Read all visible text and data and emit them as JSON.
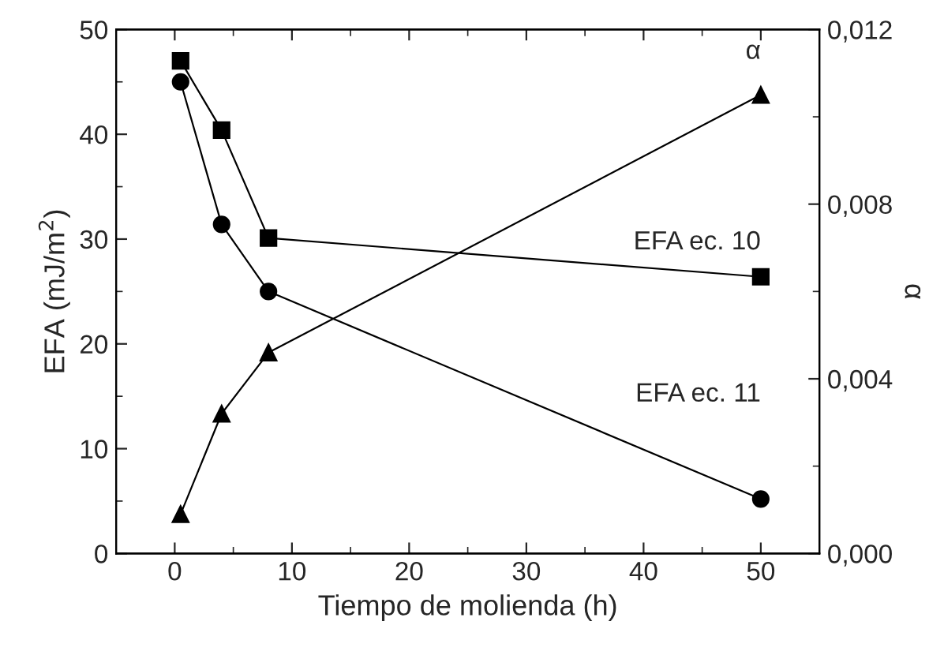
{
  "chart_data": {
    "type": "line",
    "xlabel": "Tiempo de molienda (h)",
    "ylabel": "EFA (mJ/m$^{2}$)",
    "y2label": "α",
    "x": [
      0.5,
      4,
      8,
      50
    ],
    "series": [
      {
        "name": "EFA ec. 10",
        "color": "#000000",
        "marker": "square",
        "values": [
          47,
          40.4,
          30.1,
          26.4
        ]
      },
      {
        "name": "EFA ec. 11",
        "color": "#000000",
        "marker": "circle",
        "values": [
          45,
          31.4,
          25,
          5.2
        ]
      },
      {
        "name": "α",
        "color": "#000000",
        "marker": "triangle",
        "axis": "y2",
        "values": [
          0.0009,
          0.0032,
          0.0046,
          0.0105
        ]
      }
    ],
    "xlim": [
      -5,
      55
    ],
    "xticks": [
      0,
      10,
      20,
      30,
      40,
      50
    ],
    "ylim": [
      0,
      50
    ],
    "yticks": [
      0,
      10,
      20,
      30,
      40,
      50
    ],
    "y2lim": [
      0,
      0.012
    ],
    "y2ticks": [
      {
        "value": 0,
        "label": "0,000"
      },
      {
        "value": 0.004,
        "label": "0,004"
      },
      {
        "value": 0.008,
        "label": "0,008"
      },
      {
        "value": 0.012,
        "label": "0,012"
      }
    ],
    "grid": false,
    "legend": false,
    "line_style": "solid"
  }
}
